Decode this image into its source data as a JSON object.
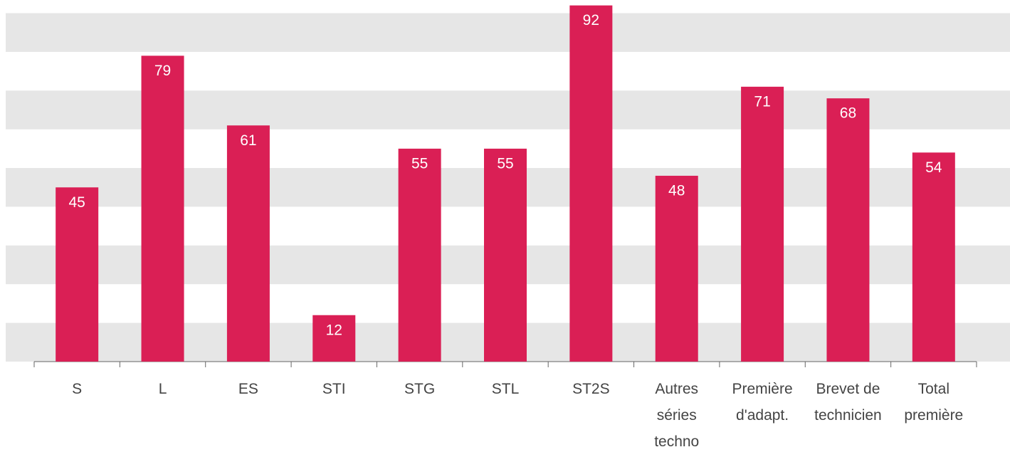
{
  "chart_data": {
    "type": "bar",
    "categories": [
      "S",
      "L",
      "ES",
      "STI",
      "STG",
      "STL",
      "ST2S",
      "Autres\nséries\ntechno",
      "Première\nd'adapt.",
      "Brevet de\ntechnicien",
      "Total\npremière"
    ],
    "values": [
      45,
      79,
      61,
      12,
      55,
      55,
      92,
      48,
      71,
      68,
      54
    ],
    "color": "#da1f55",
    "ylim": [
      0,
      93.4
    ],
    "yticks": [
      0,
      10,
      20,
      30,
      40,
      50,
      60,
      70,
      80,
      90
    ],
    "grid": "bands"
  }
}
